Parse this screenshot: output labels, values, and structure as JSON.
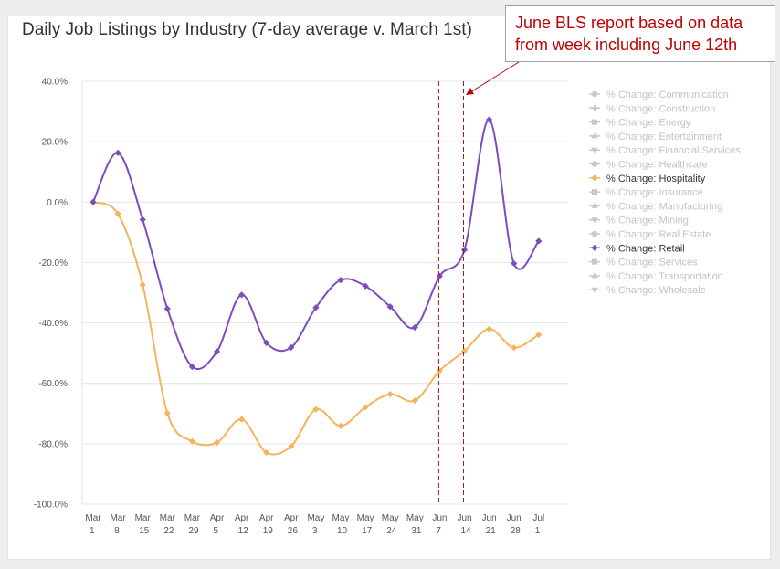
{
  "title": "Daily Job Listings by Industry (7-day average v. March 1st)",
  "annotation": {
    "lines": [
      "June BLS report based on data",
      "from week including June 12th"
    ],
    "color": "#c00000"
  },
  "chart_data": {
    "type": "line",
    "title": "Daily Job Listings by Industry (7-day average v. March 1st)",
    "categories": [
      [
        "Mar",
        "1"
      ],
      [
        "Mar",
        "8"
      ],
      [
        "Mar",
        "15"
      ],
      [
        "Mar",
        "22"
      ],
      [
        "Mar",
        "29"
      ],
      [
        "Apr",
        "5"
      ],
      [
        "Apr",
        "12"
      ],
      [
        "Apr",
        "19"
      ],
      [
        "Apr",
        "26"
      ],
      [
        "May",
        "3"
      ],
      [
        "May",
        "10"
      ],
      [
        "May",
        "17"
      ],
      [
        "May",
        "24"
      ],
      [
        "May",
        "31"
      ],
      [
        "Jun",
        "7"
      ],
      [
        "Jun",
        "14"
      ],
      [
        "Jun",
        "21"
      ],
      [
        "Jun",
        "28"
      ],
      [
        "Jul",
        "1"
      ]
    ],
    "ylim": [
      -100,
      40
    ],
    "yticks": [
      40,
      20,
      0,
      -20,
      -40,
      -60,
      -80,
      -100
    ],
    "ytick_labels": [
      "40.0%",
      "20.0%",
      "0.0%",
      "-20.0%",
      "-40.0%",
      "-60.0%",
      "-80.0%",
      "-100.0%"
    ],
    "grid": true,
    "legend_position": "right",
    "reference_lines": [
      {
        "between": [
          "Jun 7",
          "Jun 14"
        ],
        "at": "Jun 7"
      },
      {
        "between": [
          "Jun 7",
          "Jun 14"
        ],
        "at": "Jun 14"
      }
    ],
    "series": [
      {
        "name": "% Change: Retail",
        "color": "#7c4dbd",
        "values": [
          0,
          16.3,
          -5.8,
          -35.3,
          -54.5,
          -49.5,
          -30.7,
          -46.6,
          -48.1,
          -34.9,
          -25.8,
          -27.8,
          -34.6,
          -41.5,
          -24.5,
          -15.8,
          27.3,
          -20.3,
          -12.9
        ]
      },
      {
        "name": "% Change: Hospitality",
        "color": "#f5b35c",
        "values": [
          0,
          -3.9,
          -27.4,
          -69.9,
          -79.2,
          -79.6,
          -71.9,
          -82.9,
          -80.8,
          -68.6,
          -74.1,
          -67.9,
          -63.6,
          -65.7,
          -55.8,
          -49.3,
          -42.0,
          -48.2,
          -43.9
        ]
      }
    ],
    "legend": [
      {
        "label": "% Change: Communication",
        "marker": "circle",
        "active": false
      },
      {
        "label": "% Change: Construction",
        "marker": "plus",
        "active": false
      },
      {
        "label": "% Change: Energy",
        "marker": "square",
        "active": false
      },
      {
        "label": "% Change: Entertainment",
        "marker": "triangle",
        "active": false
      },
      {
        "label": "% Change: Financial Services",
        "marker": "triangle-down",
        "active": false
      },
      {
        "label": "% Change: Healthcare",
        "marker": "circle",
        "active": false
      },
      {
        "label": "% Change: Hospitality",
        "marker": "diamond",
        "active": true,
        "color": "#f5b35c"
      },
      {
        "label": "% Change: Insurance",
        "marker": "square",
        "active": false
      },
      {
        "label": "% Change: Manufacturing",
        "marker": "triangle",
        "active": false
      },
      {
        "label": "% Change: Mining",
        "marker": "triangle-down",
        "active": false
      },
      {
        "label": "% Change: Real Estate",
        "marker": "circle",
        "active": false
      },
      {
        "label": "% Change: Retail",
        "marker": "diamond",
        "active": true,
        "color": "#7c4dbd"
      },
      {
        "label": "% Change: Services",
        "marker": "square",
        "active": false
      },
      {
        "label": "% Change: Transportation",
        "marker": "triangle",
        "active": false
      },
      {
        "label": "% Change: Wholesale",
        "marker": "triangle-down",
        "active": false
      }
    ],
    "inactive_color": "#c8c8c8"
  }
}
